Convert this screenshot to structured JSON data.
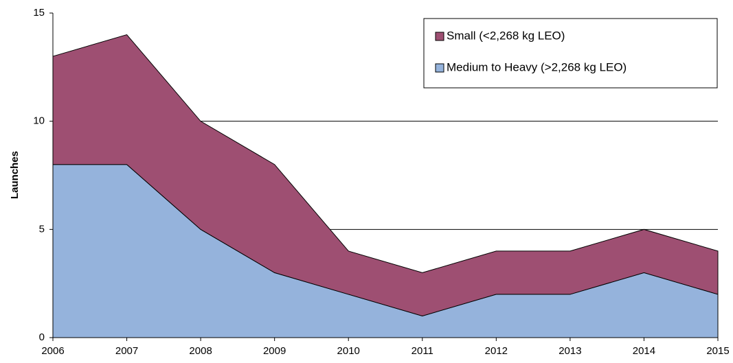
{
  "chart_data": {
    "type": "stacked-area",
    "y_label": "Launches",
    "categories": [
      "2006",
      "2007",
      "2008",
      "2009",
      "2010",
      "2011",
      "2012",
      "2013",
      "2014",
      "2015"
    ],
    "series": [
      {
        "name": "Small (<2,268 kg LEO)",
        "color": "#9e4f72",
        "values": [
          5,
          6,
          5,
          5,
          2,
          2,
          2,
          2,
          2,
          2
        ]
      },
      {
        "name": "Medium to Heavy (>2,268 kg LEO)",
        "color": "#95b3dc",
        "values": [
          8,
          8,
          5,
          3,
          2,
          1,
          2,
          2,
          3,
          2
        ]
      }
    ],
    "ylim": [
      0,
      15
    ],
    "yticks": [
      0,
      5,
      10,
      15
    ],
    "grid": true
  }
}
